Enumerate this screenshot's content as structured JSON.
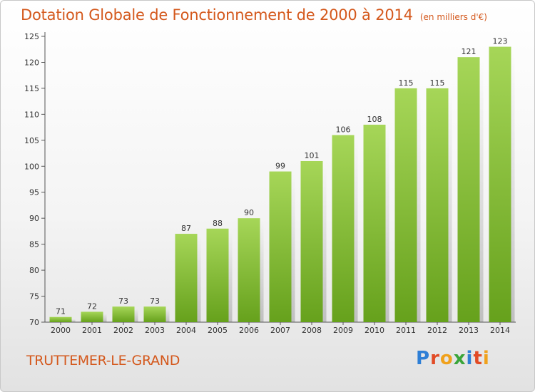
{
  "title": "Dotation Globale de Fonctionnement de 2000 à 2014",
  "subtitle": "(en milliers d'€)",
  "commune": "TRUTTEMER-LE-GRAND",
  "logo": "Proxiti",
  "colors": {
    "title": "#d4581c",
    "bar_light": "#a6d658",
    "bar_dark": "#66a11c",
    "logo": [
      "#2e7fd6",
      "#e24b26",
      "#f0a11c",
      "#3aa53a",
      "#2e7fd6",
      "#e24b26",
      "#f0a11c"
    ]
  },
  "chart_data": {
    "type": "bar",
    "title": "Dotation Globale de Fonctionnement de 2000 à 2014",
    "subtitle": "(en milliers d'€)",
    "categories": [
      "2000",
      "2001",
      "2002",
      "2003",
      "2004",
      "2005",
      "2006",
      "2007",
      "2008",
      "2009",
      "2010",
      "2011",
      "2012",
      "2013",
      "2014"
    ],
    "values": [
      71,
      72,
      73,
      73,
      87,
      88,
      90,
      99,
      101,
      106,
      108,
      115,
      115,
      121,
      123
    ],
    "ylim": [
      70,
      125
    ],
    "yticks": [
      70,
      75,
      80,
      85,
      90,
      95,
      100,
      105,
      110,
      115,
      120,
      125
    ],
    "grid": false,
    "data_labels": true
  }
}
